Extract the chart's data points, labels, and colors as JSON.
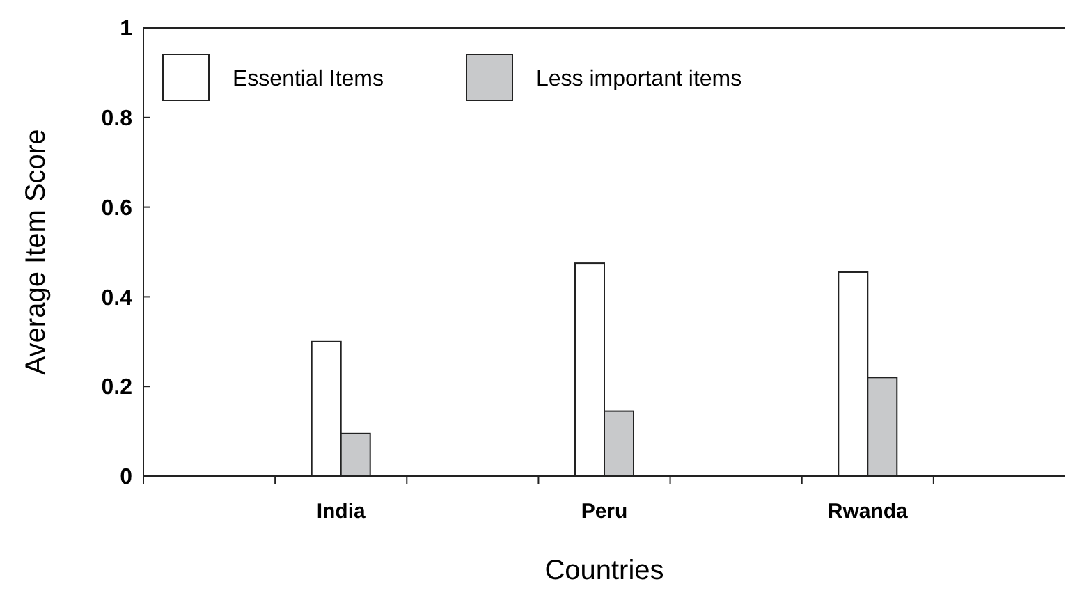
{
  "chart_data": {
    "type": "bar",
    "xlabel": "Countries",
    "ylabel": "Average Item Score",
    "categories": [
      null,
      "India",
      null,
      "Peru",
      null,
      "Rwanda",
      null
    ],
    "series": [
      {
        "name": "Essential Items",
        "color": "#ffffff",
        "values": [
          null,
          0.3,
          null,
          0.475,
          null,
          0.455,
          null
        ]
      },
      {
        "name": "Less important items",
        "color": "#c8c9cb",
        "values": [
          null,
          0.095,
          null,
          0.145,
          null,
          0.22,
          null
        ]
      }
    ],
    "ylim": [
      0,
      1
    ],
    "yticks": [
      0,
      0.2,
      0.4,
      0.6,
      0.8,
      1
    ],
    "legend": "top left",
    "grid": false
  }
}
